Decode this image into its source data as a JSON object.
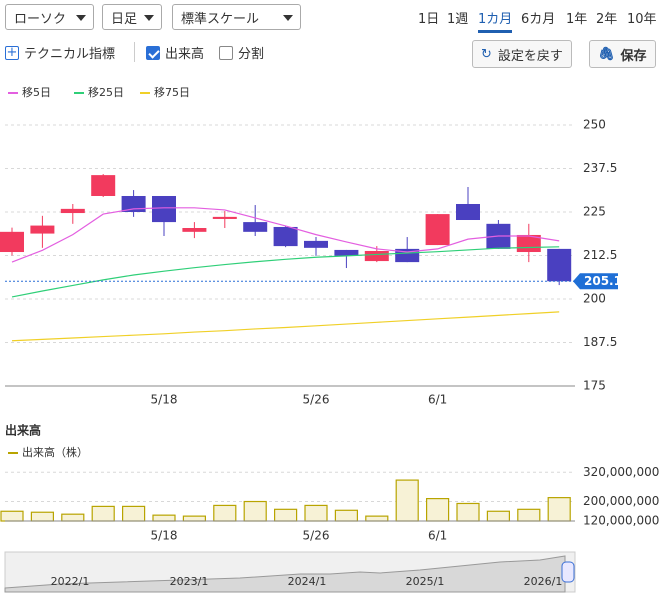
{
  "toolbar": {
    "selects": [
      "ローソク",
      "日足",
      "標準スケール"
    ],
    "periods": [
      "1日",
      "1週",
      "1カ月",
      "6カ月",
      "1年",
      "2年",
      "10年"
    ],
    "active_period": 2,
    "checkboxes": [
      {
        "label": "テクニカル指標",
        "checked": false
      },
      {
        "label": "出来高",
        "checked": true
      },
      {
        "label": "分割",
        "checked": false
      }
    ],
    "buttons": [
      "設定を戻す",
      "保存"
    ]
  },
  "chart_data": [
    {
      "type": "candlestick",
      "categories": [
        null,
        null,
        null,
        null,
        null,
        "5/18",
        null,
        null,
        null,
        null,
        "5/26",
        null,
        null,
        null,
        "6/1",
        null,
        null,
        null,
        null
      ],
      "open": [
        213.5,
        218.8,
        224.7,
        229.6,
        229.6,
        229.6,
        219.3,
        223.0,
        222.1,
        220.7,
        216.7,
        214.1,
        210.9,
        214.4,
        215.5,
        227.3,
        221.6,
        213.5,
        214.4
      ],
      "high": [
        220.5,
        223.9,
        227.3,
        235.9,
        231.3,
        229.6,
        222.1,
        225.3,
        227.0,
        221.0,
        217.8,
        214.1,
        215.2,
        217.8,
        224.4,
        232.2,
        222.7,
        221.6,
        214.4
      ],
      "low": [
        212.5,
        214.7,
        221.6,
        229.3,
        223.6,
        218.1,
        217.5,
        220.4,
        218.1,
        214.9,
        212.4,
        208.9,
        210.6,
        210.6,
        215.5,
        222.7,
        214.4,
        210.6,
        204.0
      ],
      "close": [
        219.3,
        221.1,
        225.9,
        235.6,
        225.0,
        222.1,
        220.4,
        223.6,
        219.3,
        215.2,
        214.7,
        212.4,
        213.8,
        210.6,
        224.4,
        222.7,
        214.4,
        218.4,
        205.1
      ],
      "up_color": "#f23a5e",
      "down_color": "#4a40c0",
      "series": [
        {
          "name": "移5日",
          "color": "#e35fe0",
          "values": [
            210.6,
            214.0,
            218.5,
            224.4,
            225.9,
            226.2,
            226.2,
            225.6,
            223.3,
            221.0,
            218.5,
            216.4,
            214.4,
            213.5,
            214.4,
            217.2,
            218.1,
            218.1,
            216.7
          ]
        },
        {
          "name": "移25日",
          "color": "#2fcf78",
          "values": [
            200.6,
            202.3,
            203.9,
            205.5,
            206.9,
            208.0,
            209.0,
            209.9,
            210.7,
            211.4,
            212.0,
            212.4,
            212.8,
            213.2,
            213.6,
            214.1,
            214.6,
            214.8,
            215.0
          ]
        },
        {
          "name": "移75日",
          "color": "#f0d028",
          "values": [
            188.0,
            188.4,
            188.8,
            189.2,
            189.6,
            190.0,
            190.5,
            190.9,
            191.4,
            191.8,
            192.3,
            192.8,
            193.3,
            193.8,
            194.3,
            194.8,
            195.3,
            195.8,
            196.3
          ]
        }
      ],
      "ylim": [
        175,
        250
      ],
      "yticks": [
        250,
        237.5,
        225,
        212.5,
        200,
        187.5,
        175
      ],
      "grid": true
    },
    {
      "type": "bar",
      "title": "出来高",
      "categories": [
        null,
        null,
        null,
        null,
        null,
        "5/18",
        null,
        null,
        null,
        null,
        "5/26",
        null,
        null,
        null,
        "6/1",
        null,
        null,
        null,
        null
      ],
      "series": [
        {
          "name": "出来高（株）",
          "color": "#b8a400",
          "values": [
            160000000,
            156000000,
            148000000,
            180000000,
            180000000,
            144000000,
            140000000,
            184000000,
            200000000,
            168000000,
            184000000,
            164000000,
            140000000,
            288000000,
            212000000,
            192000000,
            160000000,
            168000000,
            216000000
          ]
        }
      ],
      "ylim": [
        120000000,
        350000000
      ],
      "yticks": [
        {
          "value": 320000000,
          "label": "320,000,000"
        },
        {
          "value": 200000000,
          "label": "200,000,000"
        },
        {
          "value": 120000000,
          "label": "120,000,000"
        }
      ],
      "grid": true
    }
  ],
  "navigator": {
    "labels": [
      "2022/1",
      "2023/1",
      "2024/1",
      "2025/1",
      "2026/1"
    ]
  }
}
